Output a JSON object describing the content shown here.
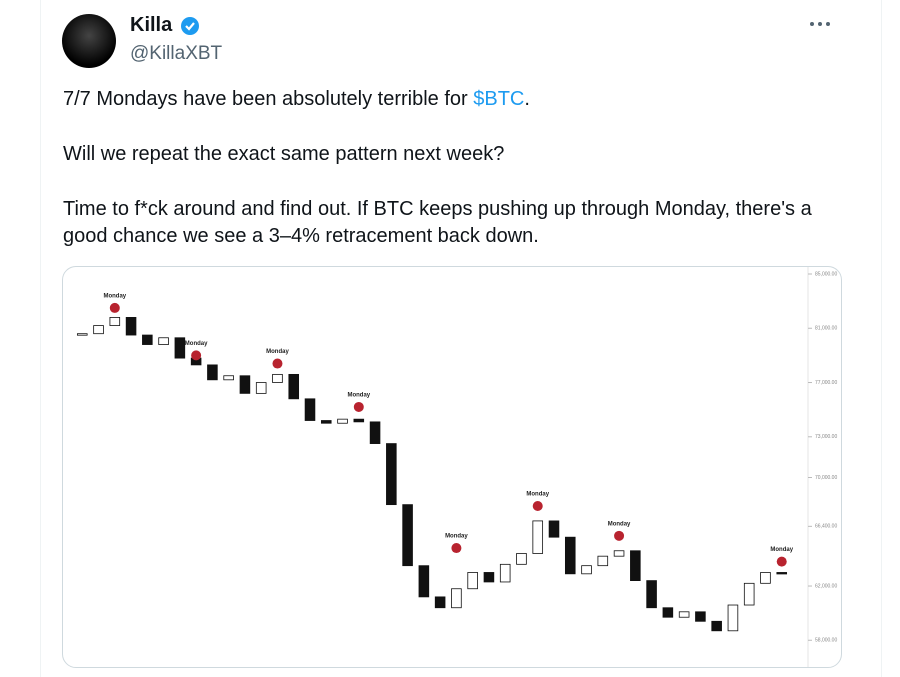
{
  "author": {
    "name": "Killa",
    "handle": "@KillaXBT"
  },
  "tweet": {
    "paragraphs": [
      [
        "7/7 Mondays have been absolutely terrible for ",
        "$BTC",
        "."
      ],
      [
        "Will we repeat the exact same pattern next week?"
      ],
      [
        "Time to f*ck around and find out. If BTC keeps pushing up through Monday, there's a good chance we see a 3–4% retracement back down."
      ]
    ]
  },
  "chart_data": {
    "type": "candlestick",
    "x": [
      0,
      1,
      2,
      3,
      4,
      5,
      6,
      7,
      8,
      9,
      10,
      11,
      12,
      13,
      14,
      15,
      16,
      17,
      18,
      19,
      20,
      21,
      22,
      23,
      24,
      25,
      26,
      27,
      28,
      29,
      30,
      31,
      32,
      33,
      34,
      35,
      36,
      37,
      38,
      39,
      40,
      41,
      42,
      43
    ],
    "values": [
      80600,
      81200,
      81800,
      80500,
      79800,
      80300,
      78800,
      78300,
      77200,
      77500,
      76200,
      77000,
      77600,
      75800,
      74200,
      74000,
      74300,
      74100,
      72500,
      68000,
      63500,
      61200,
      60400,
      61800,
      63000,
      62300,
      63600,
      64400,
      66800,
      65600,
      62900,
      63500,
      64200,
      64600,
      62400,
      60400,
      59700,
      60100,
      59400,
      58700,
      60600,
      62200,
      63000,
      62900
    ],
    "xlim": [
      -1,
      44
    ],
    "ylim": [
      56400,
      85000
    ],
    "yticks": [
      {
        "value": 85000,
        "label": "85,000.00"
      },
      {
        "value": 81000,
        "label": "81,000.00"
      },
      {
        "value": 77000,
        "label": "77,000.00"
      },
      {
        "value": 73000,
        "label": "73,000.00"
      },
      {
        "value": 70000,
        "label": "70,000.00"
      },
      {
        "value": 66400,
        "label": "66,400.00"
      },
      {
        "value": 62000,
        "label": "62,000.00"
      },
      {
        "value": 58000,
        "label": "58,000.00"
      }
    ],
    "annotations": [
      {
        "text": "Monday",
        "x": 2,
        "value": 82500
      },
      {
        "text": "Monday",
        "x": 7,
        "value": 79000
      },
      {
        "text": "Monday",
        "x": 12,
        "value": 78400
      },
      {
        "text": "Monday",
        "x": 17,
        "value": 75200
      },
      {
        "text": "Monday",
        "x": 23,
        "value": 64800
      },
      {
        "text": "Monday",
        "x": 28,
        "value": 67900
      },
      {
        "text": "Monday",
        "x": 33,
        "value": 65700
      },
      {
        "text": "Monday",
        "x": 43,
        "value": 63800
      }
    ],
    "marker_color": "#b8232f"
  }
}
